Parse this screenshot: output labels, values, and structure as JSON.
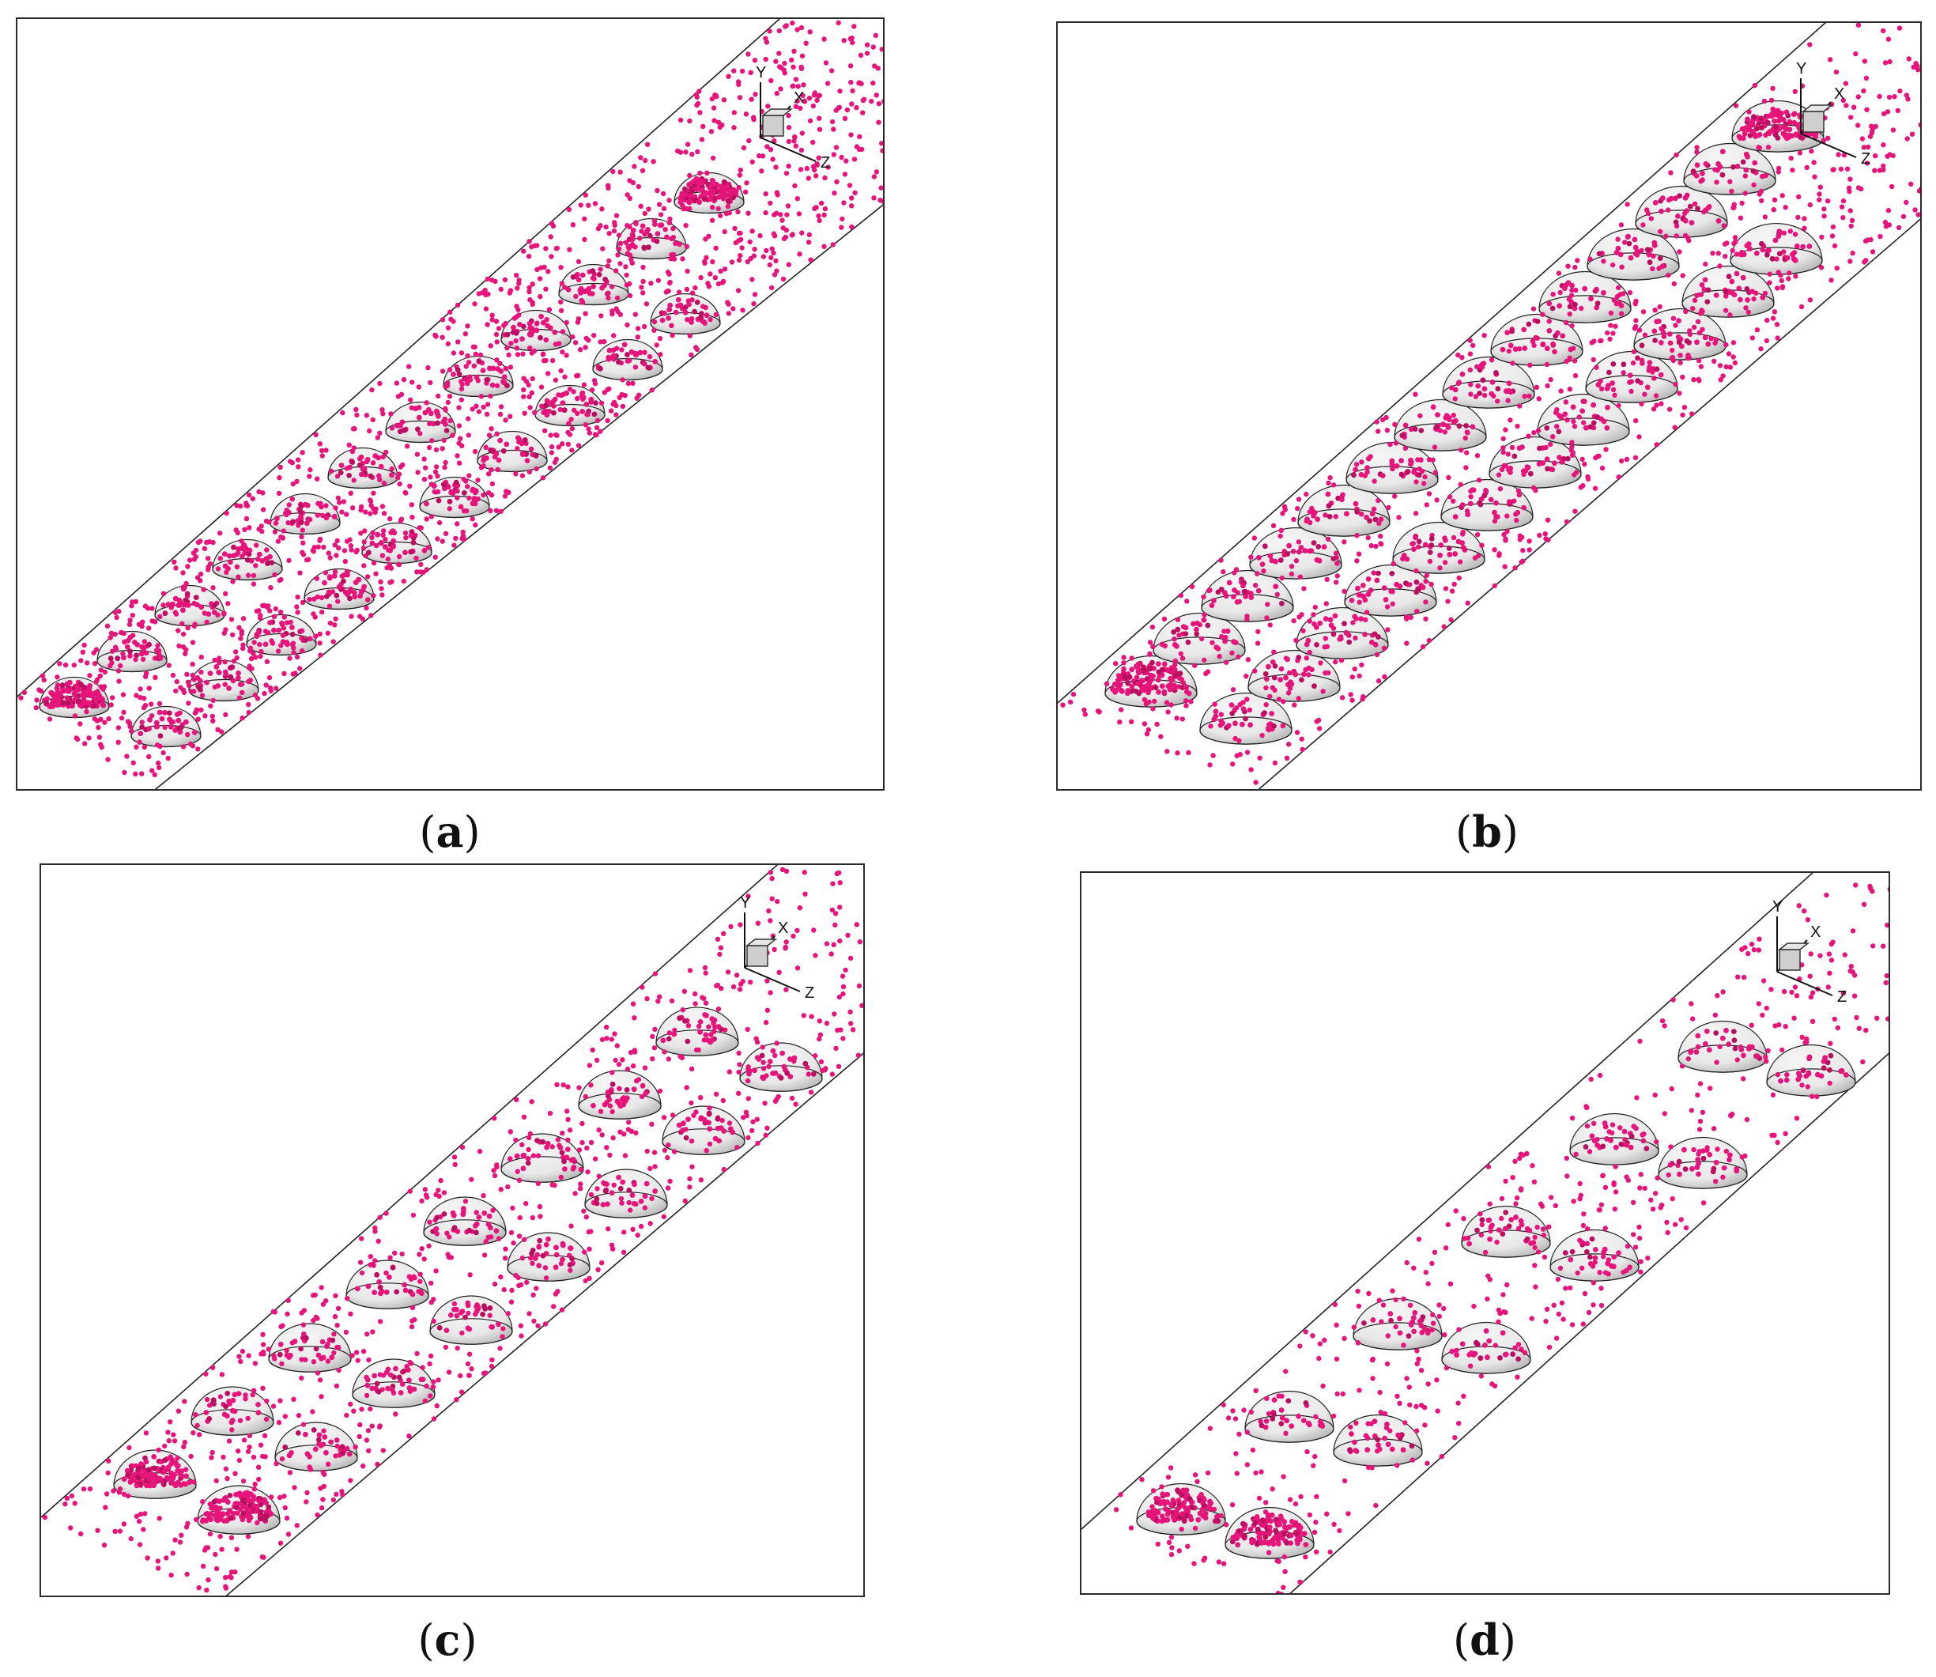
{
  "figure": {
    "colors": {
      "particle": "#e6157a",
      "particle_dark": "#b8105f",
      "hemisphere_light": "#f6f6f6",
      "hemisphere_shadow": "#bdbdbd",
      "frame": "#2b2b2b",
      "channel_edge": "#222222"
    },
    "axis_labels": {
      "y": "Y",
      "x": "X",
      "z": "Z"
    },
    "panels": [
      {
        "id": "a",
        "caption_letter": "a",
        "rows": 2,
        "hemis_per_row": [
          12,
          10
        ],
        "hemi_size": "small",
        "particle_density": "high"
      },
      {
        "id": "b",
        "caption_letter": "b",
        "rows": 2,
        "hemis_per_row": [
          14,
          12
        ],
        "hemi_size": "large",
        "particle_density": "medium"
      },
      {
        "id": "c",
        "caption_letter": "c",
        "rows": 2,
        "hemis_per_row": [
          8,
          8
        ],
        "hemi_size": "medium",
        "particle_density": "medium"
      },
      {
        "id": "d",
        "caption_letter": "d",
        "rows": 2,
        "hemis_per_row": [
          6,
          6
        ],
        "hemi_size": "medium",
        "particle_density": "low"
      }
    ]
  }
}
